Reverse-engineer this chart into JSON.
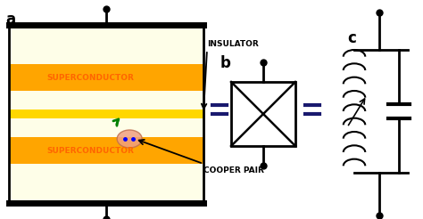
{
  "bg_color": "#ffffff",
  "panel_a_bg": "#FEFEE8",
  "sc_color": "#FF6600",
  "insulator_color": "#FFB800",
  "equal_color": "#1a1a6e",
  "label_a": "a",
  "label_b": "b",
  "label_c": "c",
  "sc_text": "SUPERCONDUCTOR",
  "insulator_text": "INSULATOR",
  "cooper_text": "COOPER PAIR",
  "figsize": [
    4.74,
    2.46
  ],
  "dpi": 100
}
